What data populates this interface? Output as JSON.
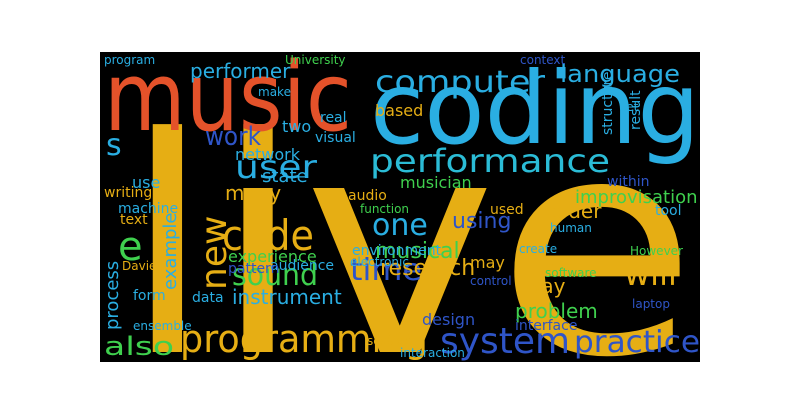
{
  "word_cloud": {
    "background": "#000000",
    "words": [
      {
        "text": "live",
        "color": "#e6ae14"
      },
      {
        "text": "coding",
        "color": "#2aaee2"
      },
      {
        "text": "music",
        "color": "#e4522a"
      },
      {
        "text": "computer",
        "color": "#2aaee2"
      },
      {
        "text": "language",
        "color": "#2aaee2"
      },
      {
        "text": "performance",
        "color": "#2bbcd6"
      },
      {
        "text": "user",
        "color": "#2aaee2"
      },
      {
        "text": "work",
        "color": "#2f55c8"
      },
      {
        "text": "s",
        "color": "#2aaee2"
      },
      {
        "text": "code",
        "color": "#e6ae14"
      },
      {
        "text": "new",
        "color": "#e6ae14"
      },
      {
        "text": "e",
        "color": "#3fd04e"
      },
      {
        "text": "sound",
        "color": "#3fd04e"
      },
      {
        "text": "time",
        "color": "#2f55c8"
      },
      {
        "text": "one",
        "color": "#2aaee2"
      },
      {
        "text": "programming",
        "color": "#e6ae14"
      },
      {
        "text": "also",
        "color": "#3fd04e"
      },
      {
        "text": "system",
        "color": "#2f55c8"
      },
      {
        "text": "practice",
        "color": "#2f55c8"
      },
      {
        "text": "will",
        "color": "#e6ae14"
      },
      {
        "text": "many",
        "color": "#e6ae14"
      },
      {
        "text": "state",
        "color": "#2aaee2"
      },
      {
        "text": "instrument",
        "color": "#2aaee2"
      },
      {
        "text": "experience",
        "color": "#3fd04e"
      },
      {
        "text": "musical",
        "color": "#3fd04e"
      },
      {
        "text": "using",
        "color": "#2f55c8"
      },
      {
        "text": "research",
        "color": "#e6ae14"
      },
      {
        "text": "way",
        "color": "#e6ae14"
      },
      {
        "text": "problem",
        "color": "#3fd04e"
      },
      {
        "text": "coder",
        "color": "#e6ae14"
      },
      {
        "text": "improvisation",
        "color": "#3fd04e"
      },
      {
        "text": "used",
        "color": "#e6ae14"
      },
      {
        "text": "musician",
        "color": "#3fd04e"
      },
      {
        "text": "based",
        "color": "#e6ae14"
      },
      {
        "text": "two",
        "color": "#2aaee2"
      },
      {
        "text": "network",
        "color": "#2aaee2"
      },
      {
        "text": "visual",
        "color": "#2aaee2"
      },
      {
        "text": "real",
        "color": "#2aaee2"
      },
      {
        "text": "performer",
        "color": "#2aaee2"
      },
      {
        "text": "University",
        "color": "#3fd04e"
      },
      {
        "text": "program",
        "color": "#2aaee2"
      },
      {
        "text": "context",
        "color": "#2f55c8"
      },
      {
        "text": "writing",
        "color": "#e6ae14"
      },
      {
        "text": "use",
        "color": "#2aaee2"
      },
      {
        "text": "machine",
        "color": "#2aaee2"
      },
      {
        "text": "text",
        "color": "#e6ae14"
      },
      {
        "text": "example",
        "color": "#2aaee2"
      },
      {
        "text": "process",
        "color": "#2aaee2"
      },
      {
        "text": "Davies",
        "color": "#e6ae14"
      },
      {
        "text": "form",
        "color": "#2aaee2"
      },
      {
        "text": "data",
        "color": "#2aaee2"
      },
      {
        "text": "audience",
        "color": "#2aaee2"
      },
      {
        "text": "pattern",
        "color": "#2f55c8"
      },
      {
        "text": "audio",
        "color": "#e6ae14"
      },
      {
        "text": "function",
        "color": "#3fd04e"
      },
      {
        "text": "environment",
        "color": "#2aaee2"
      },
      {
        "text": "electronic",
        "color": "#2aaee2"
      },
      {
        "text": "design",
        "color": "#2f55c8"
      },
      {
        "text": "interface",
        "color": "#2f55c8"
      },
      {
        "text": "session",
        "color": "#e6ae14"
      },
      {
        "text": "interaction",
        "color": "#2aaee2"
      },
      {
        "text": "may",
        "color": "#e6ae14"
      },
      {
        "text": "control",
        "color": "#2f55c8"
      },
      {
        "text": "create",
        "color": "#2aaee2"
      },
      {
        "text": "human",
        "color": "#2aaee2"
      },
      {
        "text": "However",
        "color": "#3fd04e"
      },
      {
        "text": "tool",
        "color": "#2aaee2"
      },
      {
        "text": "within",
        "color": "#2f55c8"
      },
      {
        "text": "software",
        "color": "#3fd04e"
      },
      {
        "text": "paper",
        "color": "#e6ae14"
      },
      {
        "text": "laptop",
        "color": "#2f55c8"
      },
      {
        "text": "ensemble",
        "color": "#2aaee2"
      },
      {
        "text": "make",
        "color": "#2aaee2"
      },
      {
        "text": "structure",
        "color": "#2aaee2"
      },
      {
        "text": "result",
        "color": "#2aaee2"
      },
      {
        "text": "set",
        "color": "#2aaee2"
      }
    ]
  }
}
